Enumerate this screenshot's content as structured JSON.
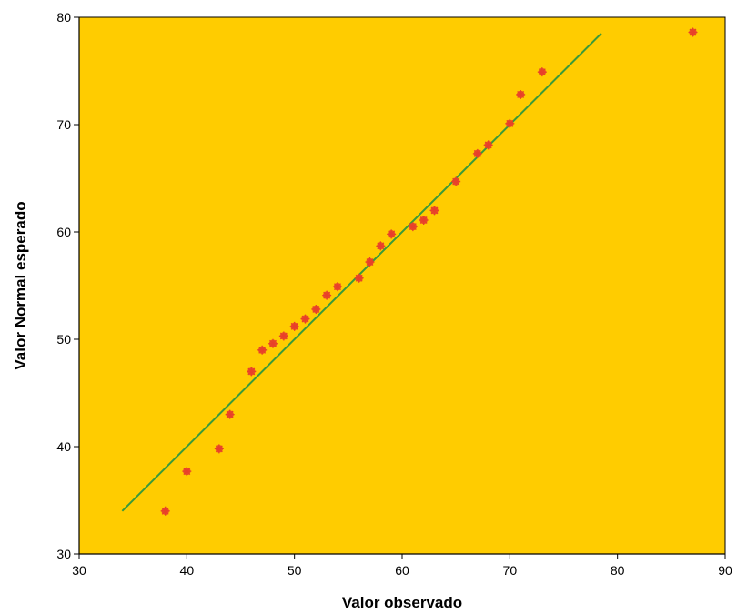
{
  "chart_data": {
    "type": "scatter",
    "xlabel": "Valor observado",
    "ylabel": "Valor Normal esperado",
    "xlim": [
      30,
      90
    ],
    "ylim": [
      30,
      80
    ],
    "x_ticks": [
      "30",
      "40",
      "50",
      "60",
      "70",
      "80",
      "90"
    ],
    "y_ticks": [
      "30",
      "40",
      "50",
      "60",
      "70",
      "80"
    ],
    "grid": false,
    "legend": "none",
    "colors": {
      "plot_background": "#FFCC00",
      "points": "#E8402A",
      "reference_line": "#3A9A3A",
      "axes": "#000000"
    },
    "points": [
      {
        "x": 38,
        "y": 34.0
      },
      {
        "x": 40,
        "y": 37.7
      },
      {
        "x": 43,
        "y": 39.8
      },
      {
        "x": 44,
        "y": 43.0
      },
      {
        "x": 46,
        "y": 47.0
      },
      {
        "x": 47,
        "y": 49.0
      },
      {
        "x": 48,
        "y": 49.6
      },
      {
        "x": 49,
        "y": 50.3
      },
      {
        "x": 50,
        "y": 51.2
      },
      {
        "x": 51,
        "y": 51.9
      },
      {
        "x": 52,
        "y": 52.8
      },
      {
        "x": 53,
        "y": 54.1
      },
      {
        "x": 54,
        "y": 54.9
      },
      {
        "x": 56,
        "y": 55.7
      },
      {
        "x": 57,
        "y": 57.2
      },
      {
        "x": 58,
        "y": 58.7
      },
      {
        "x": 59,
        "y": 59.8
      },
      {
        "x": 61,
        "y": 60.5
      },
      {
        "x": 62,
        "y": 61.1
      },
      {
        "x": 63,
        "y": 62.0
      },
      {
        "x": 65,
        "y": 64.7
      },
      {
        "x": 67,
        "y": 67.3
      },
      {
        "x": 68,
        "y": 68.1
      },
      {
        "x": 70,
        "y": 70.1
      },
      {
        "x": 71,
        "y": 72.8
      },
      {
        "x": 73,
        "y": 74.9
      },
      {
        "x": 87,
        "y": 78.6
      }
    ],
    "reference_line": {
      "x": [
        34,
        78.5
      ],
      "y": [
        34,
        78.5
      ]
    }
  }
}
